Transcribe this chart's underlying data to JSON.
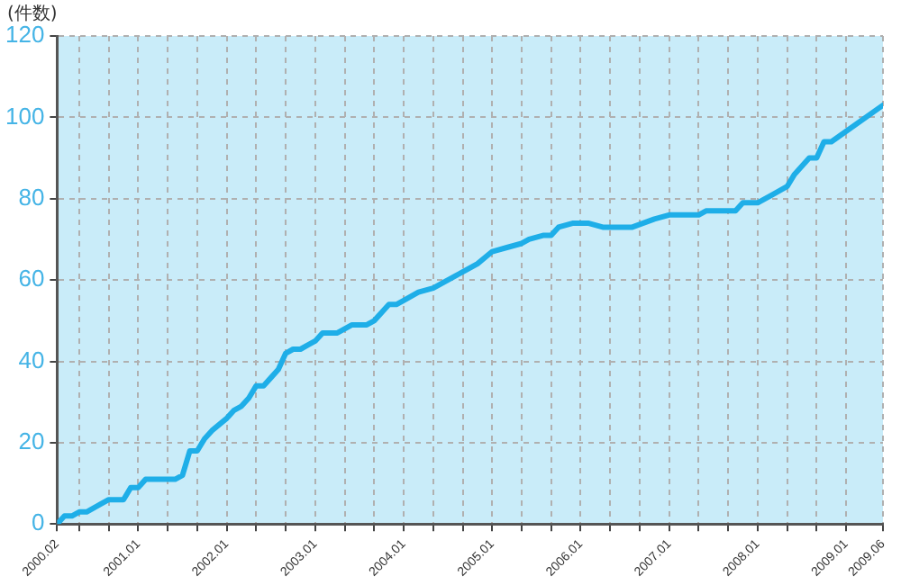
{
  "chart_data": {
    "type": "line",
    "ylabel": "(件数)",
    "x": [
      "2000-02",
      "2000-03",
      "2000-04",
      "2000-05",
      "2000-06",
      "2000-08",
      "2000-09",
      "2000-11",
      "2000-12",
      "2001-01",
      "2001-02",
      "2001-06",
      "2001-07",
      "2001-08",
      "2001-09",
      "2001-10",
      "2001-11",
      "2002-01",
      "2002-02",
      "2002-03",
      "2002-04",
      "2002-05",
      "2002-06",
      "2002-07",
      "2002-08",
      "2002-09",
      "2002-10",
      "2002-11",
      "2002-12",
      "2003-01",
      "2003-02",
      "2003-04",
      "2003-05",
      "2003-06",
      "2003-08",
      "2003-09",
      "2003-11",
      "2003-12",
      "2004-01",
      "2004-03",
      "2004-05",
      "2004-08",
      "2004-09",
      "2004-11",
      "2005-01",
      "2005-03",
      "2005-05",
      "2005-06",
      "2005-08",
      "2005-09",
      "2005-10",
      "2005-12",
      "2006-02",
      "2006-04",
      "2006-08",
      "2006-11",
      "2007-01",
      "2007-05",
      "2007-06",
      "2007-10",
      "2007-11",
      "2008-01",
      "2008-03",
      "2008-05",
      "2008-06",
      "2008-08",
      "2008-09",
      "2008-10",
      "2008-11",
      "2009-06"
    ],
    "series": [
      {
        "color": "#1eaee8",
        "values": [
          0,
          2,
          2,
          3,
          3,
          5,
          6,
          6,
          9,
          9,
          11,
          11,
          12,
          18,
          18,
          21,
          23,
          26,
          28,
          29,
          31,
          34,
          34,
          36,
          38,
          42,
          43,
          43,
          44,
          45,
          47,
          47,
          48,
          49,
          49,
          50,
          54,
          54,
          55,
          57,
          58,
          61,
          62,
          64,
          67,
          68,
          69,
          70,
          71,
          71,
          73,
          74,
          74,
          73,
          73,
          75,
          76,
          76,
          77,
          77,
          79,
          79,
          81,
          83,
          86,
          90,
          90,
          94,
          94,
          103
        ]
      }
    ],
    "xlim": [
      "2000-02",
      "2009-06"
    ],
    "xticks": [
      {
        "value": "2000-02",
        "label": "2000.02"
      },
      {
        "value": "2000-05",
        "label": null
      },
      {
        "value": "2000-09",
        "label": null
      },
      {
        "value": "2001-01",
        "label": "2001.01"
      },
      {
        "value": "2001-05",
        "label": null
      },
      {
        "value": "2001-09",
        "label": null
      },
      {
        "value": "2002-01",
        "label": "2002.01"
      },
      {
        "value": "2002-05",
        "label": null
      },
      {
        "value": "2002-09",
        "label": null
      },
      {
        "value": "2003-01",
        "label": "2003.01"
      },
      {
        "value": "2003-05",
        "label": null
      },
      {
        "value": "2003-09",
        "label": null
      },
      {
        "value": "2004-01",
        "label": "2004.01"
      },
      {
        "value": "2004-05",
        "label": null
      },
      {
        "value": "2004-09",
        "label": null
      },
      {
        "value": "2005-01",
        "label": "2005.01"
      },
      {
        "value": "2005-05",
        "label": null
      },
      {
        "value": "2005-09",
        "label": null
      },
      {
        "value": "2006-01",
        "label": "2006.01"
      },
      {
        "value": "2006-05",
        "label": null
      },
      {
        "value": "2006-09",
        "label": null
      },
      {
        "value": "2007-01",
        "label": "2007.01"
      },
      {
        "value": "2007-05",
        "label": null
      },
      {
        "value": "2007-09",
        "label": null
      },
      {
        "value": "2008-01",
        "label": "2008.01"
      },
      {
        "value": "2008-05",
        "label": null
      },
      {
        "value": "2008-09",
        "label": null
      },
      {
        "value": "2009-01",
        "label": "2009.01"
      },
      {
        "value": "2009-06",
        "label": "2009.06"
      }
    ],
    "ylim": [
      0,
      120
    ],
    "yticks": [
      0,
      20,
      40,
      60,
      80,
      100,
      120
    ],
    "grid": true,
    "legend": false,
    "marker": "none",
    "line_style": "solid"
  }
}
